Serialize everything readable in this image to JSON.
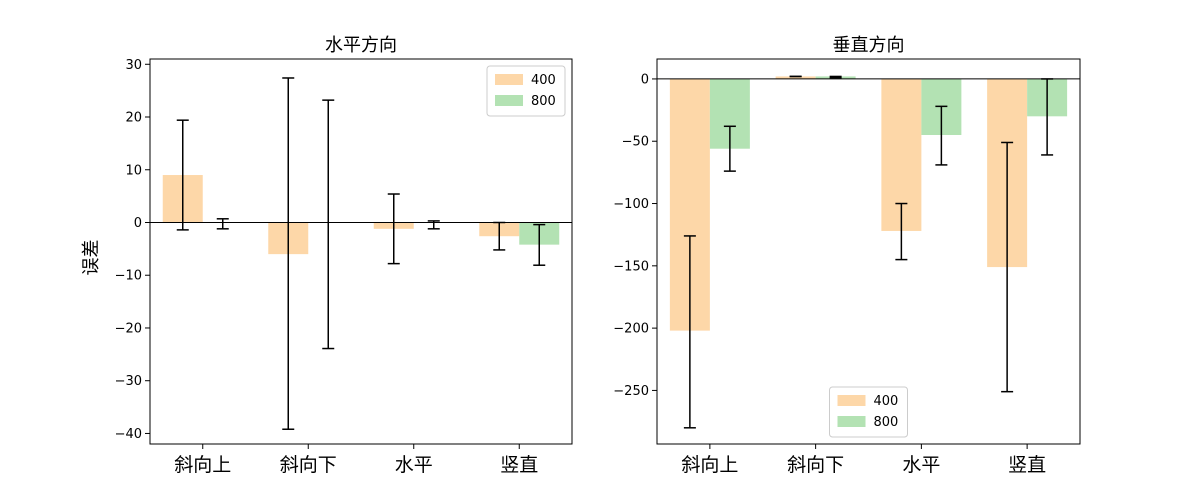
{
  "chart_data": [
    {
      "type": "bar",
      "title": "水平方向",
      "ylabel": "误差",
      "categories": [
        "斜向上",
        "斜向下",
        "水平",
        "竖直"
      ],
      "ylim": [
        -42,
        31
      ],
      "yticks": [
        30,
        20,
        10,
        0,
        -10,
        -20,
        -30,
        -40
      ],
      "ytick_labels": [
        "30",
        "20",
        "10",
        "0",
        "−10",
        "−20",
        "−30",
        "−40"
      ],
      "series": [
        {
          "name": "400",
          "values": [
            9,
            -6,
            -1.2,
            -2.6
          ],
          "err_low": [
            -1.4,
            -39.2,
            -7.8,
            -5.2
          ],
          "err_high": [
            19.4,
            27.4,
            5.4,
            0
          ],
          "color": "#fdd7a8"
        },
        {
          "name": "800",
          "values": [
            0,
            0,
            0,
            -4.2
          ],
          "err_low": [
            -1.2,
            -23.9,
            -1.2,
            -8.1
          ],
          "err_high": [
            0.7,
            23.2,
            0.3,
            -0.4
          ],
          "color": "#b3e2b3"
        }
      ],
      "legend_position": "upper right",
      "zero_line": true
    },
    {
      "type": "bar",
      "title": "垂直方向",
      "ylabel": "",
      "categories": [
        "斜向上",
        "斜向下",
        "水平",
        "竖直"
      ],
      "ylim": [
        -293,
        16
      ],
      "yticks": [
        0,
        -50,
        -100,
        -150,
        -200,
        -250
      ],
      "ytick_labels": [
        "0",
        "−50",
        "−100",
        "−150",
        "−200",
        "−250"
      ],
      "series": [
        {
          "name": "400",
          "values": [
            -202,
            2,
            -122,
            -151
          ],
          "err_low": [
            -280,
            2,
            -145,
            -251
          ],
          "err_high": [
            -126,
            2,
            -100,
            -51
          ],
          "color": "#fdd7a8"
        },
        {
          "name": "800",
          "values": [
            -56,
            2,
            -45,
            -30
          ],
          "err_low": [
            -74,
            1,
            -69,
            -61
          ],
          "err_high": [
            -38,
            2,
            -22,
            0
          ],
          "color": "#b3e2b3"
        }
      ],
      "legend_position": "lower center",
      "zero_line": true
    }
  ]
}
